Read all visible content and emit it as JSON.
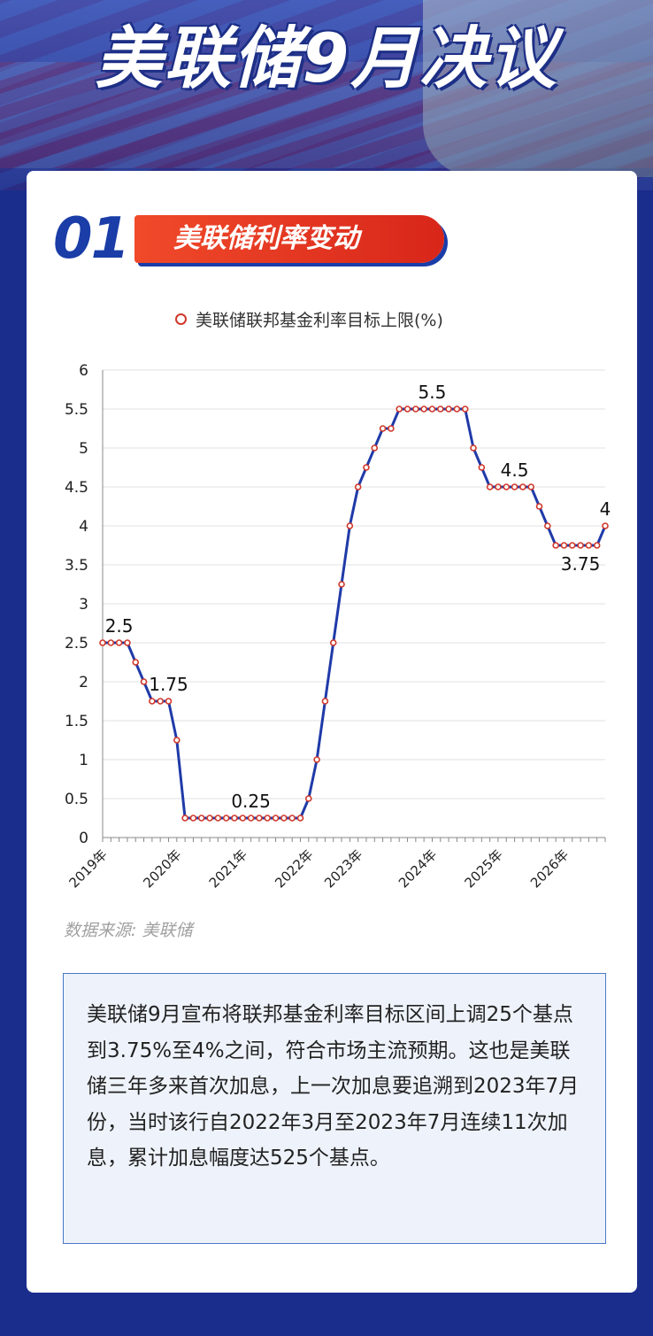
{
  "title": "美联储9月决议",
  "section": {
    "number": "01",
    "label": "美联储利率变动"
  },
  "legend_label": "美联储联邦基金利率目标上限(%)",
  "source": "数据来源: 美联储",
  "note": "美联储9月宣布将联邦基金利率目标区间上调25个基点到3.75%至4%之间，符合市场主流预期。这也是美联储三年多来首次加息，上一次加息要追溯到2023年7月份，当时该行自2022年3月至2023年7月连续11次加息，累计加息幅度达525个基点。",
  "colors": {
    "line": "#1f3aa8",
    "marker": "#d0382a",
    "accent": "#e8391f",
    "brand": "#1a3da8"
  },
  "chart_data": {
    "type": "line",
    "ylim": [
      0,
      6
    ],
    "yticks": [
      "0",
      "0.5",
      "1",
      "1.5",
      "2",
      "2.5",
      "3",
      "3.5",
      "4",
      "4.5",
      "5",
      "5.5",
      "6"
    ],
    "xtick_labels": [
      {
        "label": "2019年",
        "index": 0
      },
      {
        "label": "2020年",
        "index": 9
      },
      {
        "label": "2021年",
        "index": 17
      },
      {
        "label": "2022年",
        "index": 25
      },
      {
        "label": "2023年",
        "index": 31
      },
      {
        "label": "2024年",
        "index": 40
      },
      {
        "label": "2025年",
        "index": 48
      },
      {
        "label": "2026年",
        "index": 56
      }
    ],
    "series": [
      {
        "values": [
          2.5,
          2.5,
          2.5,
          2.5,
          2.25,
          2,
          1.75,
          1.75,
          1.75,
          1.25,
          0.25,
          0.25,
          0.25,
          0.25,
          0.25,
          0.25,
          0.25,
          0.25,
          0.25,
          0.25,
          0.25,
          0.25,
          0.25,
          0.25,
          0.25,
          0.5,
          1,
          1.75,
          2.5,
          3.25,
          4,
          4.5,
          4.75,
          5,
          5.25,
          5.25,
          5.5,
          5.5,
          5.5,
          5.5,
          5.5,
          5.5,
          5.5,
          5.5,
          5.5,
          5,
          4.75,
          4.5,
          4.5,
          4.5,
          4.5,
          4.5,
          4.5,
          4.25,
          4,
          3.75,
          3.75,
          3.75,
          3.75,
          3.75,
          3.75,
          4
        ]
      }
    ],
    "annotations": [
      {
        "text": "2.5",
        "index": 2,
        "position": "above"
      },
      {
        "text": "1.75",
        "index": 8,
        "position": "above"
      },
      {
        "text": "0.25",
        "index": 18,
        "position": "above"
      },
      {
        "text": "5.5",
        "index": 40,
        "position": "above"
      },
      {
        "text": "4.5",
        "index": 50,
        "position": "above"
      },
      {
        "text": "3.75",
        "index": 58,
        "position": "below"
      },
      {
        "text": "4",
        "index": 61,
        "position": "above"
      }
    ],
    "grid": true
  }
}
